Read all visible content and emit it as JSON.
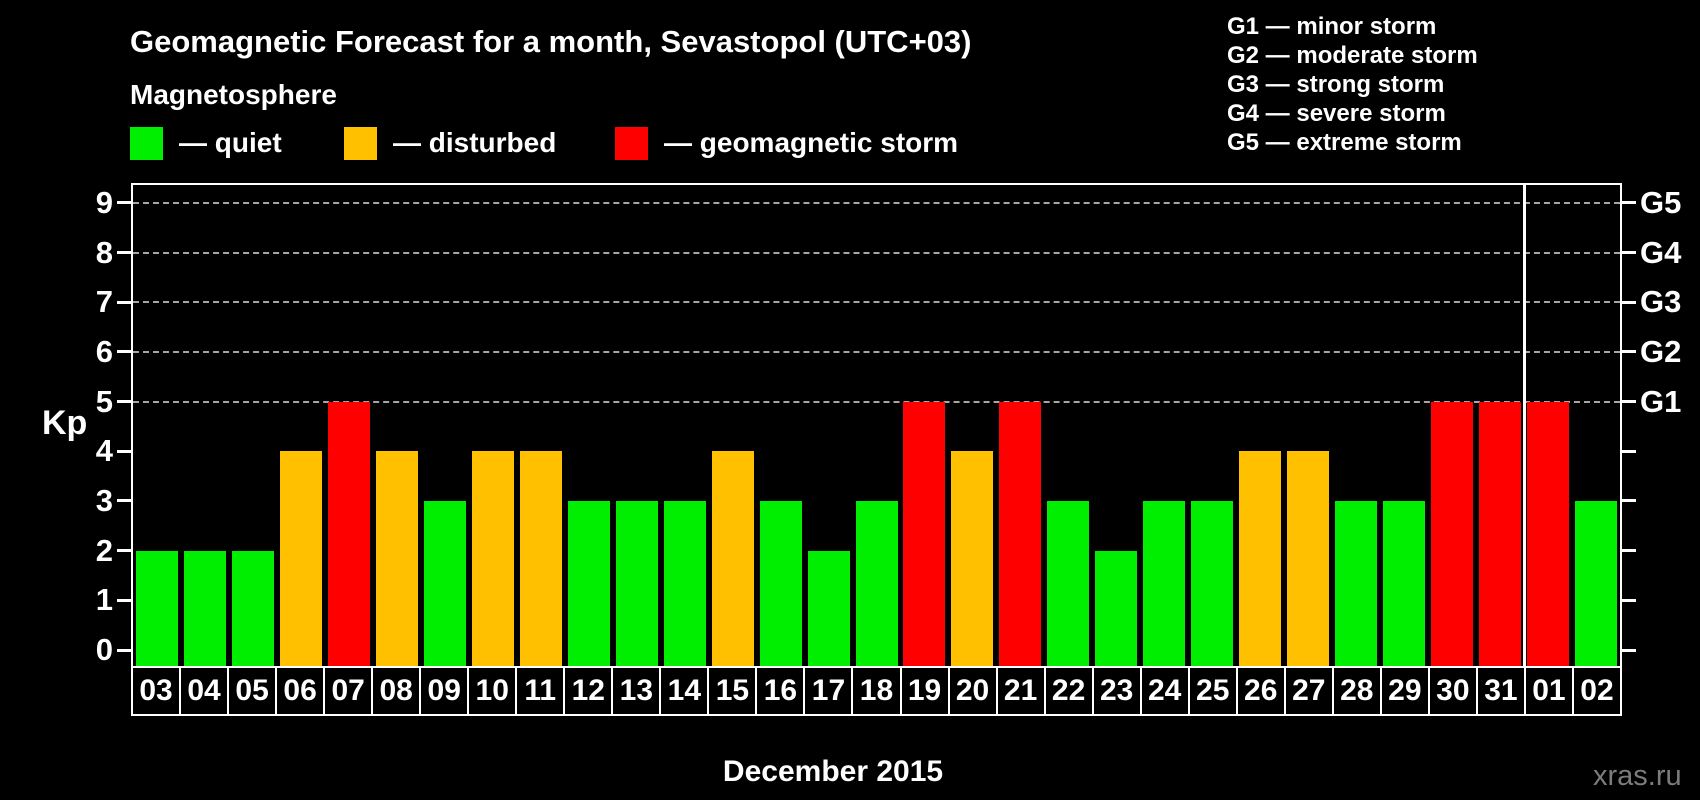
{
  "title": "Geomagnetic Forecast for a month, Sevastopol (UTC+03)",
  "legend": {
    "heading": "Magnetosphere",
    "items": [
      {
        "label": "— quiet",
        "color": "#00EE00"
      },
      {
        "label": "— disturbed",
        "color": "#FFC000"
      },
      {
        "label": "— geomagnetic storm",
        "color": "#FF0000"
      }
    ]
  },
  "storm_scale_legend": [
    "G1 — minor storm",
    "G2 — moderate storm",
    "G3 — strong storm",
    "G4 — severe storm",
    "G5 — extreme storm"
  ],
  "y_axis": {
    "label": "Kp",
    "ticks": [
      0,
      1,
      2,
      3,
      4,
      5,
      6,
      7,
      8,
      9
    ]
  },
  "right_axis": {
    "labels": [
      {
        "text": "G1",
        "kp": 5
      },
      {
        "text": "G2",
        "kp": 6
      },
      {
        "text": "G3",
        "kp": 7
      },
      {
        "text": "G4",
        "kp": 8
      },
      {
        "text": "G5",
        "kp": 9
      }
    ]
  },
  "x_axis": {
    "month_label": "December 2015"
  },
  "watermark": "xras.ru",
  "colors": {
    "background": "#000000",
    "frame": "#FFFFFF",
    "grid": "#A6A6A6",
    "text": "#FFFFFF",
    "watermark": "#7C7C7C"
  },
  "chart_data": {
    "type": "bar",
    "title": "Geomagnetic Forecast for a month, Sevastopol (UTC+03)",
    "xlabel": "December 2015",
    "ylabel": "Kp",
    "ylim": [
      0,
      9
    ],
    "gridlines_at": [
      5,
      6,
      7,
      8,
      9
    ],
    "legend_position": "top",
    "categories": [
      "03",
      "04",
      "05",
      "06",
      "07",
      "08",
      "09",
      "10",
      "11",
      "12",
      "13",
      "14",
      "15",
      "16",
      "17",
      "18",
      "19",
      "20",
      "21",
      "22",
      "23",
      "24",
      "25",
      "26",
      "27",
      "28",
      "29",
      "30",
      "31",
      "01",
      "02"
    ],
    "values": [
      2,
      2,
      2,
      4,
      5,
      4,
      3,
      4,
      4,
      3,
      3,
      3,
      4,
      3,
      2,
      3,
      5,
      4,
      5,
      3,
      2,
      3,
      3,
      4,
      4,
      3,
      3,
      5,
      5,
      5,
      3
    ],
    "color_rules": [
      {
        "category": "quiet",
        "kp_max": 3,
        "color": "#00EE00"
      },
      {
        "category": "disturbed",
        "kp_min": 4,
        "kp_max": 4,
        "color": "#FFC000"
      },
      {
        "category": "geomagnetic storm",
        "kp_min": 5,
        "color": "#FF0000"
      }
    ],
    "right_axis_labels": {
      "G1": 5,
      "G2": 6,
      "G3": 7,
      "G4": 8,
      "G5": 9
    },
    "month_boundary_between": [
      "31",
      "01"
    ]
  }
}
